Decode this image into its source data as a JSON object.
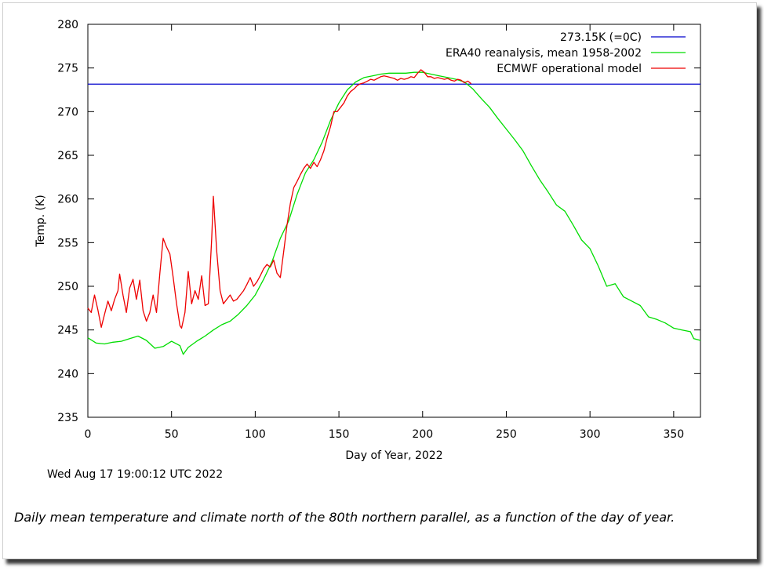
{
  "timestamp": "Wed Aug 17 19:00:12 UTC 2022",
  "caption": "Daily mean temperature and climate north of the 80th northern parallel, as a function of the day of year.",
  "colors": {
    "freezing": "#0000cc",
    "era40": "#00dd00",
    "ecmwf": "#ee0000",
    "axis": "#000000"
  },
  "chart_data": {
    "type": "line",
    "title": "",
    "xlabel": "Day of Year, 2022",
    "ylabel": "Temp. (K)",
    "xlim": [
      0,
      366
    ],
    "ylim": [
      235,
      280
    ],
    "x_ticks": [
      0,
      50,
      100,
      150,
      200,
      250,
      300,
      350
    ],
    "y_ticks": [
      235,
      240,
      245,
      250,
      255,
      260,
      265,
      270,
      275,
      280
    ],
    "grid": false,
    "legend_position": "top-right",
    "series": [
      {
        "name": "273.15K (=0C)",
        "kind": "hline",
        "y": 273.15
      },
      {
        "name": "ERA40 reanalysis, mean 1958-2002",
        "points": [
          [
            0,
            244.1
          ],
          [
            5,
            243.5
          ],
          [
            10,
            243.4
          ],
          [
            15,
            243.6
          ],
          [
            20,
            243.7
          ],
          [
            25,
            244.0
          ],
          [
            30,
            244.3
          ],
          [
            35,
            243.8
          ],
          [
            40,
            242.9
          ],
          [
            45,
            243.1
          ],
          [
            50,
            243.7
          ],
          [
            55,
            243.2
          ],
          [
            57,
            242.2
          ],
          [
            60,
            243.0
          ],
          [
            65,
            243.7
          ],
          [
            70,
            244.3
          ],
          [
            75,
            245.0
          ],
          [
            80,
            245.6
          ],
          [
            85,
            246.0
          ],
          [
            90,
            246.8
          ],
          [
            95,
            247.8
          ],
          [
            100,
            249.0
          ],
          [
            105,
            250.8
          ],
          [
            110,
            252.8
          ],
          [
            115,
            255.5
          ],
          [
            120,
            257.5
          ],
          [
            125,
            260.5
          ],
          [
            130,
            263.0
          ],
          [
            135,
            264.5
          ],
          [
            140,
            266.5
          ],
          [
            145,
            269.0
          ],
          [
            150,
            271.0
          ],
          [
            155,
            272.5
          ],
          [
            160,
            273.4
          ],
          [
            165,
            273.9
          ],
          [
            170,
            274.1
          ],
          [
            175,
            274.3
          ],
          [
            180,
            274.4
          ],
          [
            185,
            274.4
          ],
          [
            190,
            274.4
          ],
          [
            195,
            274.5
          ],
          [
            200,
            274.5
          ],
          [
            205,
            274.3
          ],
          [
            210,
            274.1
          ],
          [
            215,
            273.9
          ],
          [
            220,
            273.7
          ],
          [
            225,
            273.4
          ],
          [
            230,
            272.6
          ],
          [
            235,
            271.5
          ],
          [
            240,
            270.5
          ],
          [
            245,
            269.2
          ],
          [
            250,
            268.0
          ],
          [
            255,
            266.8
          ],
          [
            260,
            265.5
          ],
          [
            265,
            263.8
          ],
          [
            270,
            262.2
          ],
          [
            275,
            260.8
          ],
          [
            280,
            259.3
          ],
          [
            285,
            258.6
          ],
          [
            290,
            257.0
          ],
          [
            295,
            255.3
          ],
          [
            300,
            254.3
          ],
          [
            305,
            252.3
          ],
          [
            310,
            250.0
          ],
          [
            315,
            250.3
          ],
          [
            320,
            248.8
          ],
          [
            325,
            248.3
          ],
          [
            330,
            247.8
          ],
          [
            335,
            246.5
          ],
          [
            340,
            246.2
          ],
          [
            345,
            245.8
          ],
          [
            350,
            245.2
          ],
          [
            355,
            245.0
          ],
          [
            360,
            244.8
          ],
          [
            362,
            244.0
          ],
          [
            366,
            243.8
          ]
        ]
      },
      {
        "name": "ECMWF operational model",
        "points": [
          [
            0,
            247.5
          ],
          [
            2,
            247.0
          ],
          [
            4,
            249.0
          ],
          [
            6,
            247.3
          ],
          [
            8,
            245.3
          ],
          [
            10,
            246.8
          ],
          [
            12,
            248.3
          ],
          [
            14,
            247.2
          ],
          [
            16,
            248.5
          ],
          [
            18,
            249.5
          ],
          [
            19,
            251.4
          ],
          [
            21,
            249.0
          ],
          [
            23,
            247.0
          ],
          [
            25,
            249.8
          ],
          [
            27,
            250.8
          ],
          [
            29,
            248.5
          ],
          [
            31,
            250.7
          ],
          [
            33,
            247.2
          ],
          [
            35,
            246.0
          ],
          [
            37,
            247.0
          ],
          [
            39,
            249.0
          ],
          [
            41,
            247.0
          ],
          [
            43,
            251.5
          ],
          [
            45,
            255.5
          ],
          [
            47,
            254.5
          ],
          [
            49,
            253.7
          ],
          [
            51,
            251.0
          ],
          [
            53,
            248.0
          ],
          [
            55,
            245.5
          ],
          [
            56,
            245.2
          ],
          [
            58,
            247.0
          ],
          [
            60,
            251.7
          ],
          [
            62,
            248.0
          ],
          [
            64,
            249.5
          ],
          [
            66,
            248.5
          ],
          [
            68,
            251.2
          ],
          [
            70,
            247.8
          ],
          [
            72,
            248.0
          ],
          [
            74,
            255.5
          ],
          [
            75,
            260.3
          ],
          [
            77,
            254.0
          ],
          [
            79,
            249.5
          ],
          [
            81,
            248.0
          ],
          [
            83,
            248.5
          ],
          [
            85,
            249.0
          ],
          [
            87,
            248.3
          ],
          [
            89,
            248.5
          ],
          [
            91,
            249.0
          ],
          [
            93,
            249.5
          ],
          [
            95,
            250.2
          ],
          [
            97,
            251.0
          ],
          [
            99,
            250.0
          ],
          [
            101,
            250.5
          ],
          [
            103,
            251.2
          ],
          [
            105,
            252.0
          ],
          [
            107,
            252.5
          ],
          [
            109,
            252.2
          ],
          [
            111,
            253.0
          ],
          [
            113,
            251.5
          ],
          [
            115,
            251.0
          ],
          [
            117,
            254.0
          ],
          [
            119,
            257.0
          ],
          [
            121,
            259.5
          ],
          [
            123,
            261.3
          ],
          [
            125,
            262.0
          ],
          [
            127,
            262.8
          ],
          [
            129,
            263.5
          ],
          [
            131,
            264.0
          ],
          [
            133,
            263.5
          ],
          [
            135,
            264.2
          ],
          [
            137,
            263.7
          ],
          [
            139,
            264.5
          ],
          [
            141,
            265.5
          ],
          [
            143,
            267.0
          ],
          [
            145,
            268.3
          ],
          [
            147,
            270.0
          ],
          [
            149,
            270.0
          ],
          [
            151,
            270.5
          ],
          [
            153,
            271.0
          ],
          [
            155,
            271.8
          ],
          [
            157,
            272.3
          ],
          [
            159,
            272.6
          ],
          [
            161,
            273.0
          ],
          [
            163,
            273.2
          ],
          [
            165,
            273.3
          ],
          [
            167,
            273.5
          ],
          [
            169,
            273.7
          ],
          [
            171,
            273.6
          ],
          [
            173,
            273.8
          ],
          [
            175,
            274.0
          ],
          [
            177,
            274.1
          ],
          [
            179,
            274.0
          ],
          [
            181,
            273.9
          ],
          [
            183,
            273.8
          ],
          [
            185,
            273.6
          ],
          [
            187,
            273.8
          ],
          [
            189,
            273.7
          ],
          [
            191,
            273.8
          ],
          [
            193,
            274.0
          ],
          [
            195,
            273.9
          ],
          [
            197,
            274.4
          ],
          [
            199,
            274.8
          ],
          [
            201,
            274.5
          ],
          [
            203,
            274.0
          ],
          [
            205,
            274.0
          ],
          [
            207,
            273.8
          ],
          [
            209,
            273.9
          ],
          [
            211,
            273.8
          ],
          [
            213,
            273.7
          ],
          [
            215,
            273.8
          ],
          [
            217,
            273.6
          ],
          [
            219,
            273.5
          ],
          [
            221,
            273.7
          ],
          [
            223,
            273.6
          ],
          [
            225,
            273.3
          ],
          [
            227,
            273.5
          ],
          [
            229,
            273.2
          ]
        ]
      }
    ]
  }
}
